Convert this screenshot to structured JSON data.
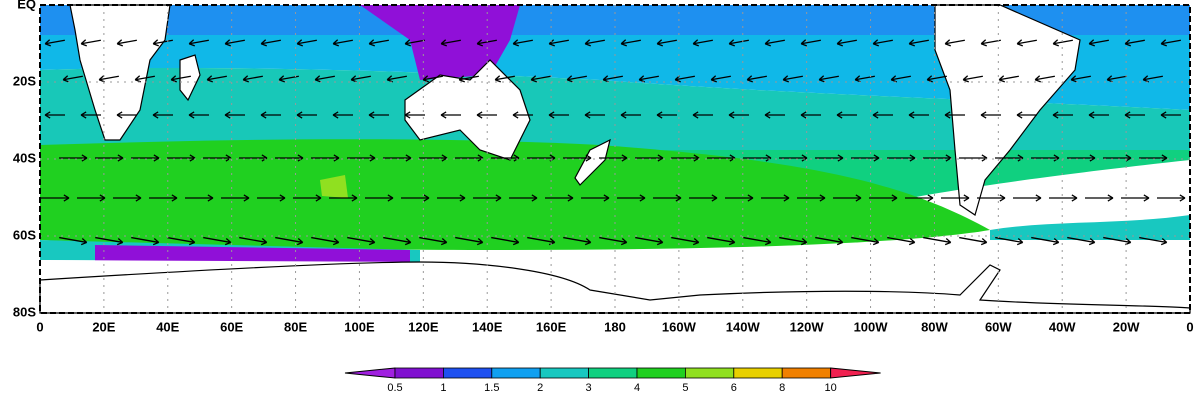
{
  "map": {
    "lat_labels": [
      "EQ",
      "20S",
      "40S",
      "60S",
      "80S"
    ],
    "lon_labels": [
      "0",
      "20E",
      "40E",
      "60E",
      "80E",
      "100E",
      "120E",
      "140E",
      "160E",
      "180",
      "160W",
      "140W",
      "120W",
      "100W",
      "80W",
      "60W",
      "40W",
      "20W",
      "0"
    ],
    "colorbar": {
      "levels": [
        0.5,
        1,
        1.5,
        2,
        3,
        4,
        5,
        6,
        8,
        10
      ],
      "colors": [
        "#a020e0",
        "#8010d0",
        "#1e50f0",
        "#10a0f0",
        "#18c8c0",
        "#10d080",
        "#20d020",
        "#90e020",
        "#e8d000",
        "#f08000",
        "#f02050"
      ]
    }
  }
}
